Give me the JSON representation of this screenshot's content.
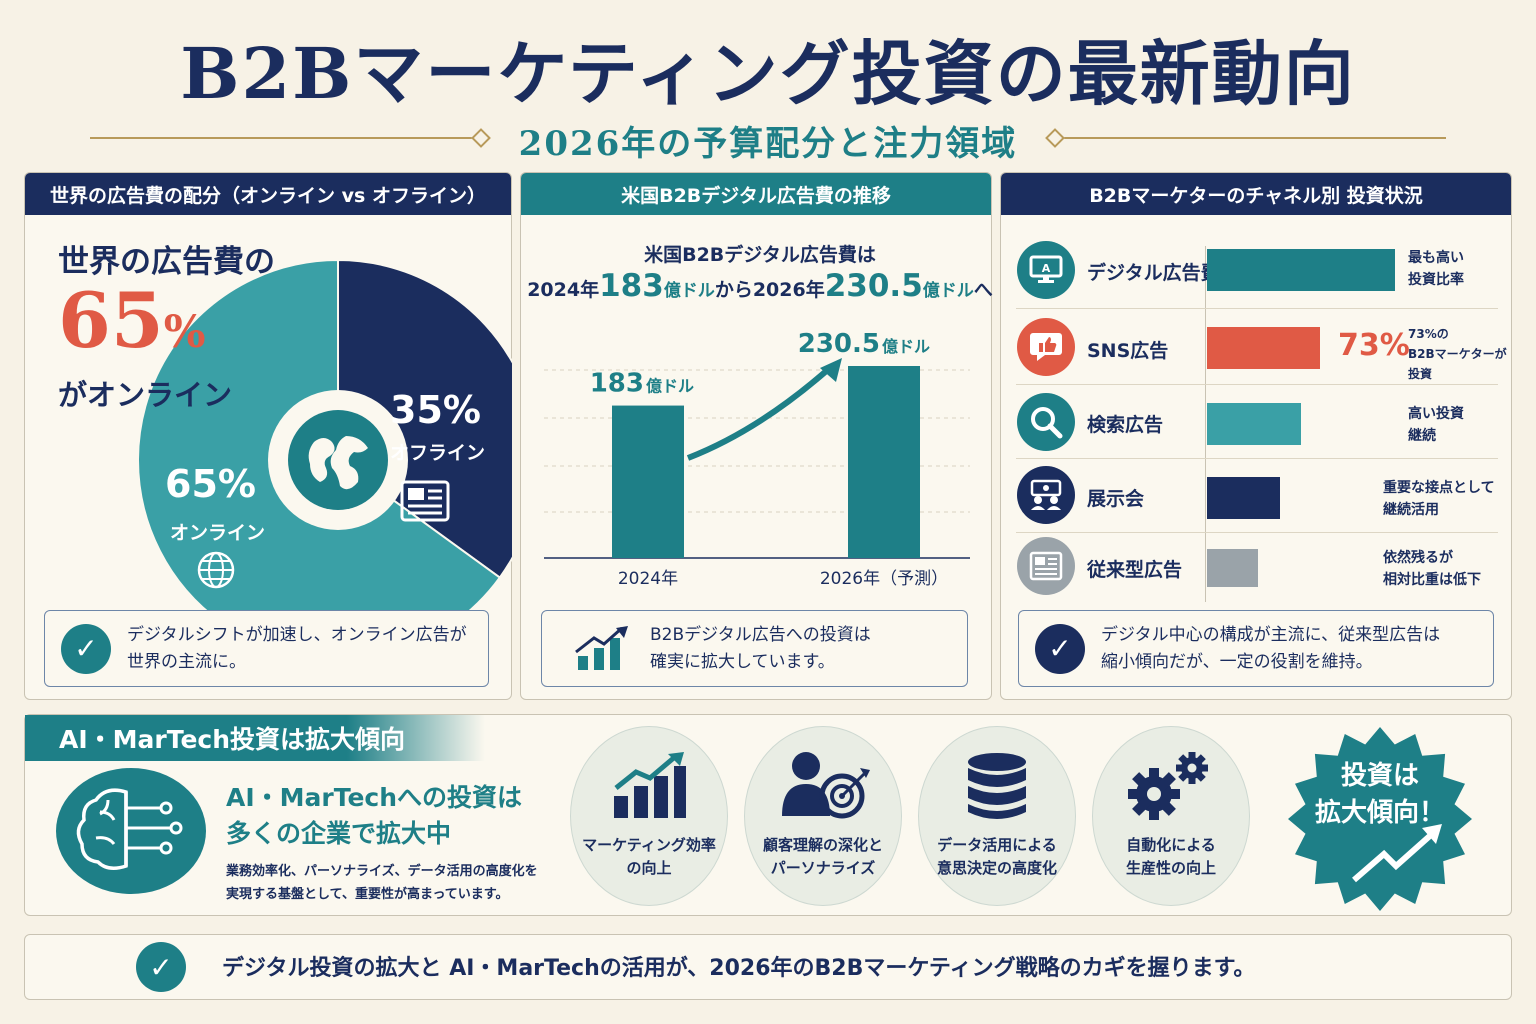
{
  "header": {
    "title": "B2Bマーケティング投資の最新動向",
    "subtitle": "2026年の予算配分と注力領域"
  },
  "panel1": {
    "heading": "世界の広告費の配分（オンライン vs オフライン）",
    "lead": "世界の広告費の",
    "big_value": "65",
    "big_unit": "%",
    "tail": "がオンライン",
    "note": [
      "デジタルシフトが加速し、オンライン広告が",
      "世界の主流に。"
    ]
  },
  "panel2": {
    "heading": "米国B2Bデジタル広告費の推移",
    "lead_line1": "米国B2Bデジタル広告費は",
    "lead_line2_a": "2024年",
    "lead_line2_v1": "183",
    "lead_line2_u1": "億ドル",
    "lead_line2_b": "から2026年",
    "lead_line2_v2": "230.5",
    "lead_line2_u2": "億ドル",
    "lead_line2_c": "へ",
    "note": [
      "B2Bデジタル広告への投資は",
      "確実に拡大しています。"
    ]
  },
  "panel3": {
    "heading": "B2Bマーケターのチャネル別 投資状況",
    "rows": [
      {
        "label": "デジタル広告費",
        "icon": "monitor-icon",
        "note": [
          "最も高い",
          "投資比率"
        ]
      },
      {
        "label": "SNS広告",
        "icon": "thumbs-up-icon",
        "value_label": "73%",
        "note": [
          "73%の",
          "B2Bマーケターが",
          "投資"
        ]
      },
      {
        "label": "検索広告",
        "icon": "search-icon",
        "note": [
          "高い投資",
          "継続"
        ]
      },
      {
        "label": "展示会",
        "icon": "exhibition-icon",
        "note": [
          "重要な接点として",
          "継続活用"
        ]
      },
      {
        "label": "従来型広告",
        "icon": "newspaper-icon",
        "note": [
          "依然残るが",
          "相対比重は低下"
        ]
      }
    ],
    "note": [
      "デジタル中心の構成が主流に、従来型広告は",
      "縮小傾向だが、一定の役割を維持。"
    ]
  },
  "ai_section": {
    "heading": "AI・MarTech投資は拡大傾向",
    "title": [
      "AI・MarTechへの投資は",
      "多くの企業で拡大中"
    ],
    "desc": [
      "業務効率化、パーソナライズ、データ活用の高度化を",
      "実現する基盤として、重要性が高まっています。"
    ],
    "features": [
      {
        "label": [
          "マーケティング効率",
          "の向上"
        ],
        "icon": "growth-chart-icon"
      },
      {
        "label": [
          "顧客理解の深化と",
          "パーソナライズ"
        ],
        "icon": "customer-target-icon"
      },
      {
        "label": [
          "データ活用による",
          "意思決定の高度化"
        ],
        "icon": "database-icon"
      },
      {
        "label": [
          "自動化による",
          "生産性の向上"
        ],
        "icon": "gears-icon"
      }
    ],
    "burst": [
      "投資は",
      "拡大傾向！"
    ]
  },
  "footer": {
    "text": "デジタル投資の拡大と AI・MarTechの活用が、2026年のB2Bマーケティング戦略のカギを握ります。"
  },
  "colors": {
    "navy": "#1b2d5e",
    "teal": "#1e7f87",
    "light_teal": "#3aa0a6",
    "coral": "#e05a45",
    "gray": "#9aa3a9"
  },
  "chart_data": [
    {
      "type": "pie",
      "labels": [
        "オンライン",
        "オフライン"
      ],
      "values": [
        65,
        35
      ],
      "value_labels": [
        "65%",
        "35%"
      ],
      "colors": [
        "#3aa0a6",
        "#1b2d5e"
      ]
    },
    {
      "type": "bar",
      "categories": [
        "2024年",
        "2026年（予測）"
      ],
      "values": [
        183,
        230.5
      ],
      "value_labels": [
        "183",
        "230.5"
      ],
      "unit": "億ドル",
      "color": "#1e7f87"
    },
    {
      "type": "bar",
      "orientation": "horizontal",
      "categories": [
        "デジタル広告費",
        "SNS広告",
        "検索広告",
        "展示会",
        "従来型広告"
      ],
      "values": [
        100,
        60,
        50,
        39,
        27
      ],
      "colors": [
        "#1e7f87",
        "#e05a45",
        "#3aa0a6",
        "#1b2d5e",
        "#9aa3a9"
      ]
    }
  ]
}
